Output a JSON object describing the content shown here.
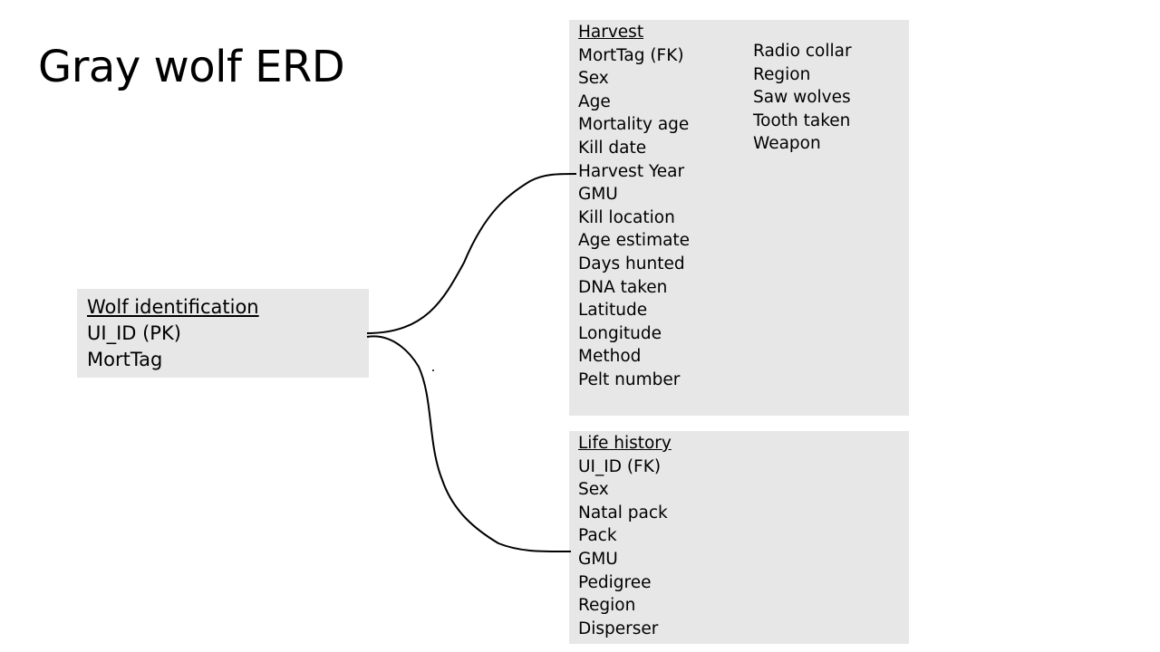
{
  "title": "Gray wolf ERD",
  "entities": {
    "wolf_identification": {
      "name": "Wolf identification",
      "fields": [
        "UI_ID (PK)",
        "MortTag"
      ]
    },
    "harvest": {
      "name": "Harvest",
      "fields_col1": [
        "MortTag (FK)",
        "Sex",
        "Age",
        "Mortality age",
        "Kill date",
        "Harvest Year",
        "GMU",
        "Kill location",
        "Age estimate",
        "Days hunted",
        "DNA taken",
        "Latitude",
        "Longitude",
        "Method",
        "Pelt number"
      ],
      "fields_col2": [
        "Radio collar",
        "Region",
        "Saw wolves",
        "Tooth taken",
        "Weapon"
      ]
    },
    "life_history": {
      "name": "Life history",
      "fields": [
        "UI_ID (FK)",
        "Sex",
        "Natal pack",
        "Pack",
        "GMU",
        "Pedigree",
        "Region",
        "Disperser"
      ]
    }
  },
  "colors": {
    "box_fill": "#e7e7e7",
    "connector": "#000000"
  }
}
